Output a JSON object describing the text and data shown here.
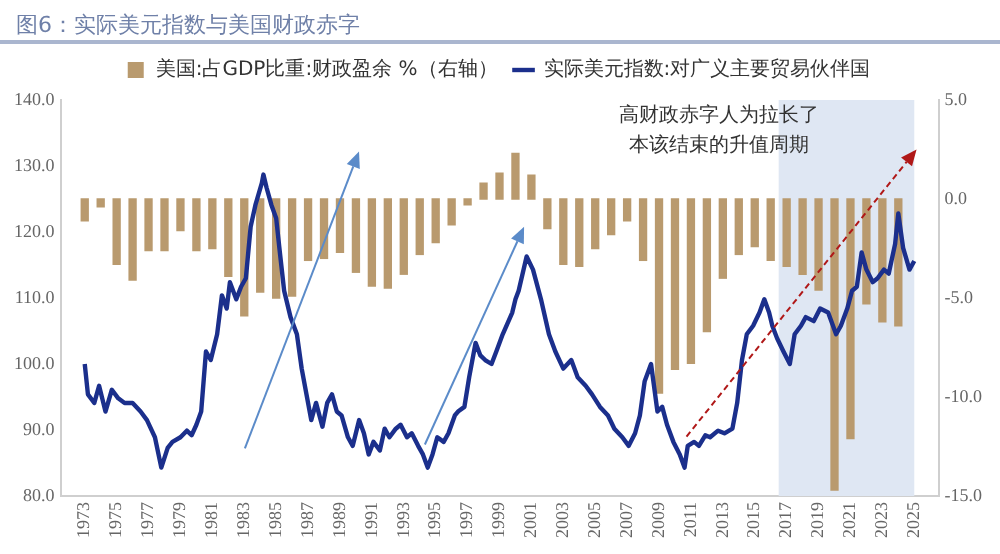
{
  "chart_data": {
    "type": "line",
    "title": "图6：实际美元指数与美国财政赤字",
    "annotations": [
      "高财政赤字人为拉长了",
      "本该结束的升值周期"
    ],
    "xlim": [
      1972.5,
      2025.5
    ],
    "xticks": [
      1973,
      1975,
      1977,
      1979,
      1981,
      1983,
      1985,
      1987,
      1989,
      1991,
      1993,
      1995,
      1997,
      1999,
      2001,
      2003,
      2005,
      2007,
      2009,
      2011,
      2013,
      2015,
      2017,
      2019,
      2021,
      2023,
      2025
    ],
    "ylim": [
      80,
      140
    ],
    "yticks": [
      {
        "value": 80,
        "label": "80.0"
      },
      {
        "value": 90,
        "label": "90.0"
      },
      {
        "value": 100,
        "label": "100.0"
      },
      {
        "value": 110,
        "label": "110.0"
      },
      {
        "value": 120,
        "label": "120.0"
      },
      {
        "value": 130,
        "label": "130.0"
      },
      {
        "value": 140,
        "label": "140.0"
      }
    ],
    "y2lim": [
      -15,
      5
    ],
    "y2ticks": [
      {
        "value": -15,
        "label": "-15.0"
      },
      {
        "value": -10,
        "label": "-10.0"
      },
      {
        "value": -5,
        "label": "-5.0"
      },
      {
        "value": 0,
        "label": "0.0"
      },
      {
        "value": 5,
        "label": "5.0"
      }
    ],
    "bands": [
      {
        "axis": "x",
        "from": 2016.5,
        "to": 2025,
        "color": "#dfe7f3"
      }
    ],
    "grid": false,
    "legend": "top",
    "series": [
      {
        "type": "bar",
        "axis": "y2",
        "name": "美国:占GDP比重:财政盈余 %（右轴）",
        "color": "#b99a6e",
        "x": [
          1973,
          1974,
          1975,
          1976,
          1977,
          1978,
          1979,
          1980,
          1981,
          1982,
          1983,
          1984,
          1985,
          1986,
          1987,
          1988,
          1989,
          1990,
          1991,
          1992,
          1993,
          1994,
          1995,
          1996,
          1997,
          1998,
          1999,
          2000,
          2001,
          2002,
          2003,
          2004,
          2005,
          2006,
          2007,
          2008,
          2009,
          2010,
          2011,
          2012,
          2013,
          2014,
          2015,
          2016,
          2017,
          2018,
          2019,
          2020,
          2021,
          2022,
          2023,
          2024
        ],
        "values": [
          -1.1,
          -0.4,
          -3.3,
          -4.1,
          -2.6,
          -2.6,
          -1.6,
          -2.6,
          -2.5,
          -3.9,
          -5.9,
          -4.7,
          -5.0,
          -4.9,
          -3.1,
          -3.0,
          -2.7,
          -3.7,
          -4.4,
          -4.5,
          -3.8,
          -2.8,
          -2.2,
          -1.3,
          -0.3,
          0.8,
          1.3,
          2.3,
          1.2,
          -1.5,
          -3.3,
          -3.4,
          -2.5,
          -1.8,
          -1.1,
          -3.1,
          -9.8,
          -8.6,
          -8.3,
          -6.7,
          -4.0,
          -2.8,
          -2.4,
          -3.1,
          -3.4,
          -3.8,
          -4.6,
          -14.7,
          -12.1,
          -5.3,
          -6.2,
          -6.4
        ]
      },
      {
        "name": "实际美元指数:对广义主要贸易伙伴国",
        "color": "#1b2f8c",
        "x": [
          1973.0,
          1973.2,
          1973.6,
          1973.9,
          1974.3,
          1974.7,
          1975.1,
          1975.5,
          1976.0,
          1976.5,
          1976.9,
          1977.4,
          1977.8,
          1978.2,
          1978.5,
          1979.0,
          1979.4,
          1979.7,
          1980.0,
          1980.3,
          1980.6,
          1980.9,
          1981.3,
          1981.6,
          1981.9,
          1982.1,
          1982.5,
          1982.8,
          1983.1,
          1983.4,
          1983.7,
          1984.1,
          1984.2,
          1984.4,
          1984.7,
          1985.0,
          1985.2,
          1985.5,
          1985.9,
          1986.3,
          1986.6,
          1986.9,
          1987.2,
          1987.5,
          1987.9,
          1988.2,
          1988.5,
          1988.8,
          1989.1,
          1989.5,
          1989.8,
          1990.2,
          1990.5,
          1990.8,
          1991.1,
          1991.5,
          1991.8,
          1992.1,
          1992.5,
          1992.8,
          1993.2,
          1993.5,
          1993.9,
          1994.2,
          1994.5,
          1994.8,
          1995.1,
          1995.5,
          1995.8,
          1996.2,
          1996.4,
          1996.8,
          1997.1,
          1997.5,
          1997.8,
          1998.1,
          1998.5,
          1998.8,
          1999.2,
          1999.8,
          2000.0,
          2000.2,
          2000.7,
          2001.1,
          2001.6,
          2002.1,
          2002.5,
          2003.0,
          2003.5,
          2003.9,
          2004.4,
          2004.8,
          2005.3,
          2005.8,
          2006.2,
          2006.7,
          2007.1,
          2007.5,
          2007.8,
          2008.1,
          2008.5,
          2008.9,
          2009.2,
          2009.5,
          2009.9,
          2010.3,
          2010.6,
          2010.8,
          2011.2,
          2011.5,
          2011.9,
          2012.2,
          2012.7,
          2013.1,
          2013.6,
          2013.9,
          2014.2,
          2014.5,
          2014.9,
          2015.3,
          2015.6,
          2015.9,
          2016.1,
          2016.4,
          2016.8,
          2017.2,
          2017.5,
          2017.9,
          2018.2,
          2018.7,
          2019.1,
          2019.6,
          2020.1,
          2020.4,
          2020.8,
          2021.1,
          2021.4,
          2021.7,
          2022.0,
          2022.4,
          2022.7,
          2023.1,
          2023.4,
          2023.8,
          2024.0,
          2024.3,
          2024.7,
          2025.0
        ],
        "values": [
          100.0,
          95.4,
          94.1,
          96.7,
          92.8,
          96.1,
          94.8,
          94.1,
          94.1,
          92.8,
          91.5,
          88.9,
          84.3,
          87.3,
          88.2,
          88.9,
          89.9,
          89.2,
          90.8,
          92.8,
          101.9,
          100.6,
          104.5,
          110.4,
          108.4,
          112.4,
          109.8,
          111.7,
          113.0,
          120.8,
          124.1,
          127.4,
          128.7,
          126.7,
          124.1,
          122.1,
          117.6,
          111.1,
          107.1,
          104.5,
          99.3,
          95.4,
          91.5,
          94.1,
          90.5,
          94.1,
          95.4,
          92.8,
          92.2,
          88.9,
          87.6,
          91.5,
          89.5,
          86.3,
          88.2,
          86.9,
          90.2,
          88.9,
          90.2,
          90.8,
          88.9,
          89.5,
          87.6,
          86.3,
          84.3,
          86.3,
          88.9,
          88.2,
          89.5,
          92.2,
          92.8,
          93.5,
          98.0,
          103.2,
          101.3,
          100.6,
          100.0,
          101.9,
          104.5,
          107.8,
          109.8,
          111.1,
          116.3,
          114.3,
          109.8,
          104.5,
          101.9,
          99.3,
          100.6,
          98.0,
          96.7,
          95.4,
          93.5,
          92.2,
          90.2,
          88.9,
          87.6,
          89.5,
          92.2,
          97.4,
          100.0,
          92.8,
          93.5,
          90.8,
          88.2,
          86.3,
          84.3,
          87.6,
          88.2,
          87.6,
          89.2,
          88.9,
          89.9,
          89.5,
          90.2,
          94.1,
          100.6,
          104.5,
          105.8,
          107.8,
          109.8,
          107.8,
          105.8,
          103.9,
          101.9,
          100.0,
          104.5,
          105.8,
          107.1,
          106.5,
          108.4,
          107.8,
          104.5,
          105.8,
          108.4,
          111.1,
          111.7,
          116.9,
          114.3,
          112.4,
          113.0,
          114.3,
          113.7,
          118.2,
          122.8,
          117.6,
          114.3,
          115.6
        ]
      }
    ]
  }
}
